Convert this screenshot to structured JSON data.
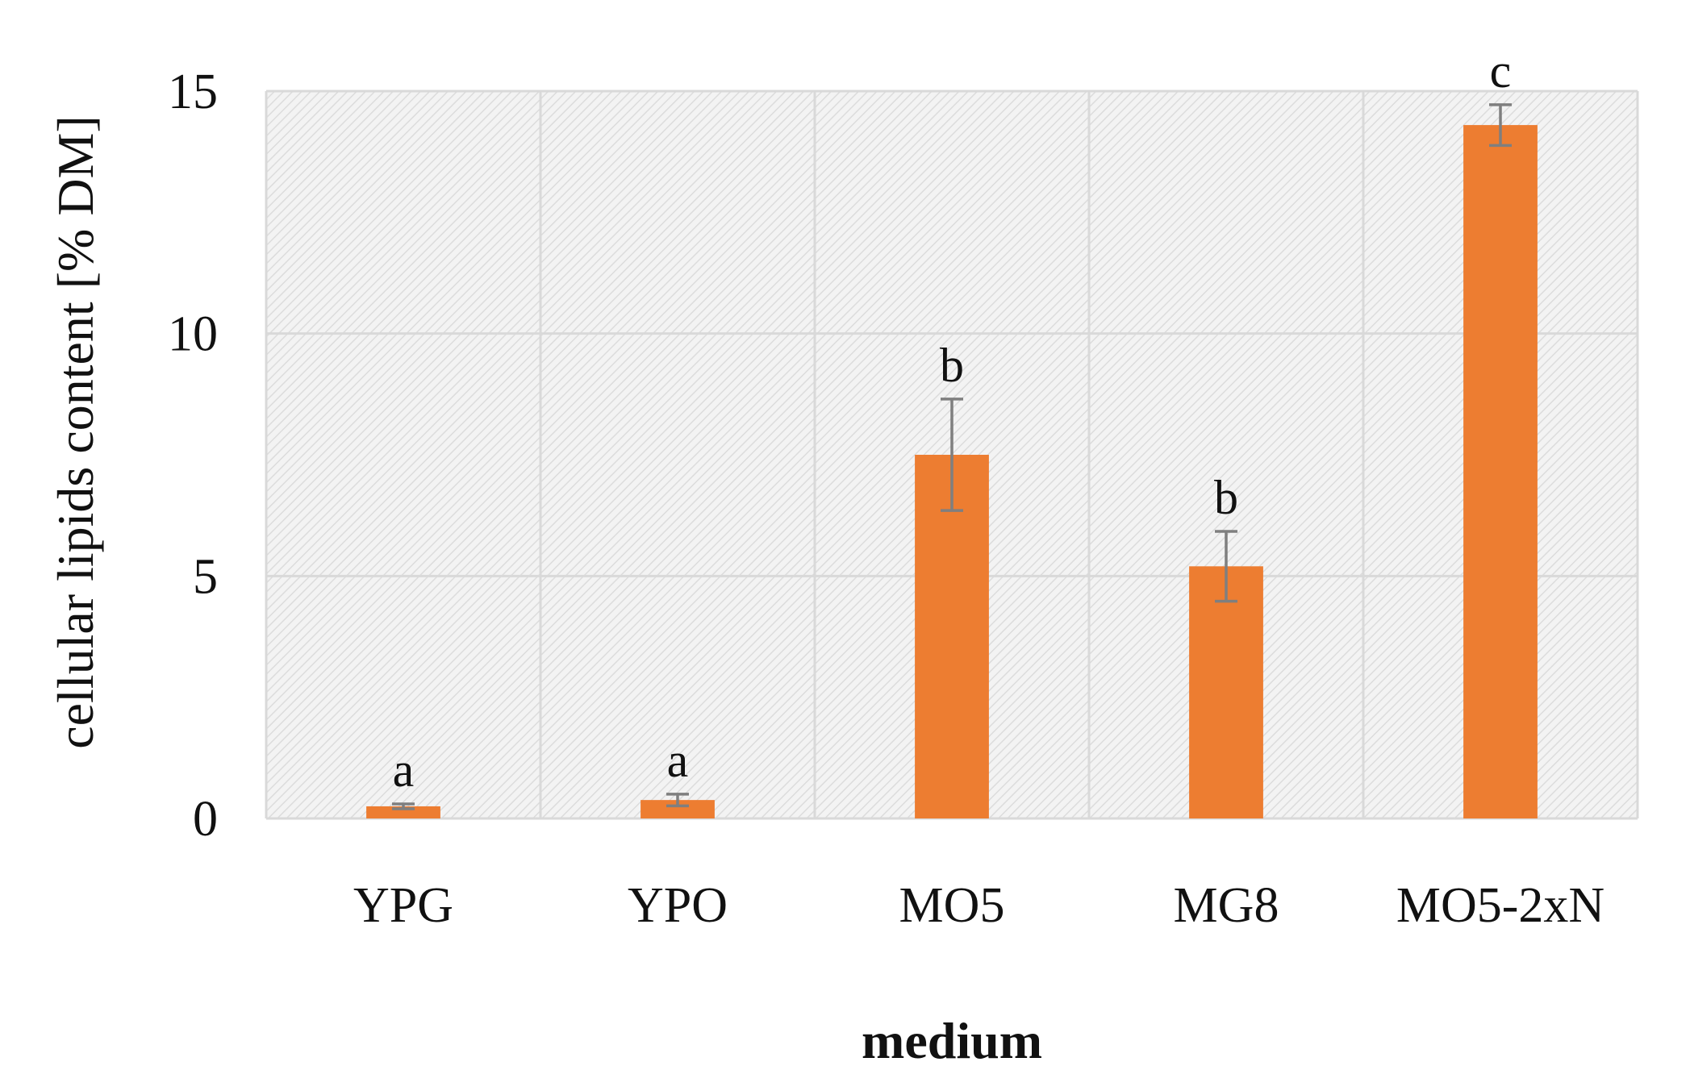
{
  "chart_data": {
    "type": "bar",
    "title": "",
    "xlabel": "medium",
    "ylabel": "cellular lipids content [% DM]",
    "categories": [
      "YPG",
      "YPO",
      "MO5",
      "MG8",
      "MO5-2xN"
    ],
    "series": [
      {
        "values": [
          0.25,
          0.38,
          7.5,
          5.2,
          14.3
        ],
        "errors": [
          0.05,
          0.12,
          1.15,
          0.72,
          0.42
        ],
        "significance": [
          "a",
          "a",
          "b",
          "b",
          "c"
        ],
        "color": "#ED7D31"
      }
    ],
    "ylim": [
      0,
      15
    ],
    "yticks": [
      "0",
      "5",
      "10",
      "15"
    ],
    "grid": true,
    "legend": "none",
    "error_bar_color": "#7F7F7F",
    "gridline_color": "#D9D9D9",
    "plot_background": "hatched-light-grey"
  }
}
